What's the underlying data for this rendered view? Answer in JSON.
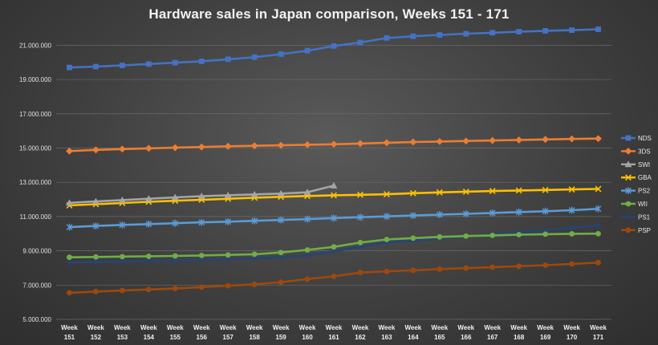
{
  "chart_data": {
    "type": "line",
    "title": "Hardware sales in Japan comparison,  Weeks 151 - 171",
    "xlabel": "",
    "ylabel": "",
    "ylim": [
      5000000,
      22000000
    ],
    "y_ticks": [
      5000000,
      7000000,
      9000000,
      11000000,
      13000000,
      15000000,
      17000000,
      19000000,
      21000000
    ],
    "y_tick_labels": [
      "5.000.000",
      "7.000.000",
      "9.000.000",
      "11.000.000",
      "13.000.000",
      "15.000.000",
      "17.000.000",
      "19.000.000",
      "21.000.000"
    ],
    "grid": true,
    "legend_position": "right",
    "x_prefix": "Week",
    "categories": [
      "151",
      "152",
      "153",
      "154",
      "155",
      "156",
      "157",
      "158",
      "159",
      "160",
      "161",
      "162",
      "163",
      "164",
      "165",
      "166",
      "167",
      "168",
      "169",
      "170",
      "171"
    ],
    "series": [
      {
        "name": "NDS",
        "color": "#4472c4",
        "marker": "square",
        "values": [
          19700000,
          19750000,
          19820000,
          19900000,
          19980000,
          20060000,
          20180000,
          20300000,
          20480000,
          20680000,
          20950000,
          21160000,
          21420000,
          21520000,
          21600000,
          21670000,
          21730000,
          21790000,
          21840000,
          21880000,
          21930000
        ]
      },
      {
        "name": "3DS",
        "color": "#ed7d31",
        "marker": "diamond",
        "values": [
          14820000,
          14890000,
          14940000,
          14980000,
          15020000,
          15060000,
          15100000,
          15130000,
          15160000,
          15190000,
          15220000,
          15260000,
          15310000,
          15350000,
          15380000,
          15410000,
          15440000,
          15470000,
          15500000,
          15530000,
          15550000
        ]
      },
      {
        "name": "SWI",
        "color": "#a5a5a5",
        "marker": "triangle",
        "values": [
          11800000,
          11880000,
          11960000,
          12040000,
          12120000,
          12190000,
          12240000,
          12290000,
          12340000,
          12420000,
          12800000,
          null,
          null,
          null,
          null,
          null,
          null,
          null,
          null,
          null,
          null
        ]
      },
      {
        "name": "GBA",
        "color": "#ffc000",
        "marker": "x",
        "values": [
          11650000,
          11720000,
          11790000,
          11860000,
          11920000,
          11980000,
          12040000,
          12100000,
          12150000,
          12200000,
          12240000,
          12270000,
          12300000,
          12360000,
          12410000,
          12450000,
          12490000,
          12520000,
          12550000,
          12580000,
          12610000
        ]
      },
      {
        "name": "PS2",
        "color": "#5b9bd5",
        "marker": "star",
        "values": [
          10380000,
          10450000,
          10510000,
          10560000,
          10610000,
          10660000,
          10700000,
          10750000,
          10800000,
          10850000,
          10910000,
          10960000,
          11010000,
          11060000,
          11110000,
          11160000,
          11210000,
          11260000,
          11310000,
          11370000,
          11450000
        ]
      },
      {
        "name": "WII",
        "color": "#70ad47",
        "marker": "circle",
        "values": [
          8620000,
          8640000,
          8660000,
          8680000,
          8700000,
          8730000,
          8760000,
          8800000,
          8900000,
          9050000,
          9230000,
          9480000,
          9660000,
          9740000,
          9810000,
          9860000,
          9900000,
          9940000,
          9970000,
          9990000,
          10000000
        ]
      },
      {
        "name": "PS1",
        "color": "#264478",
        "marker": "plus",
        "values": [
          8320000,
          8340000,
          8370000,
          8400000,
          8430000,
          8470000,
          8510000,
          8560000,
          8630000,
          8730000,
          8970000,
          9230000,
          9480000,
          9600000,
          9720000,
          9840000,
          9970000,
          10080000,
          10200000,
          10340000,
          10480000
        ]
      },
      {
        "name": "PSP",
        "color": "#9e480e",
        "marker": "circle",
        "values": [
          6550000,
          6620000,
          6680000,
          6740000,
          6800000,
          6880000,
          6960000,
          7040000,
          7170000,
          7350000,
          7510000,
          7730000,
          7800000,
          7860000,
          7930000,
          7990000,
          8040000,
          8100000,
          8160000,
          8230000,
          8310000
        ]
      }
    ]
  }
}
